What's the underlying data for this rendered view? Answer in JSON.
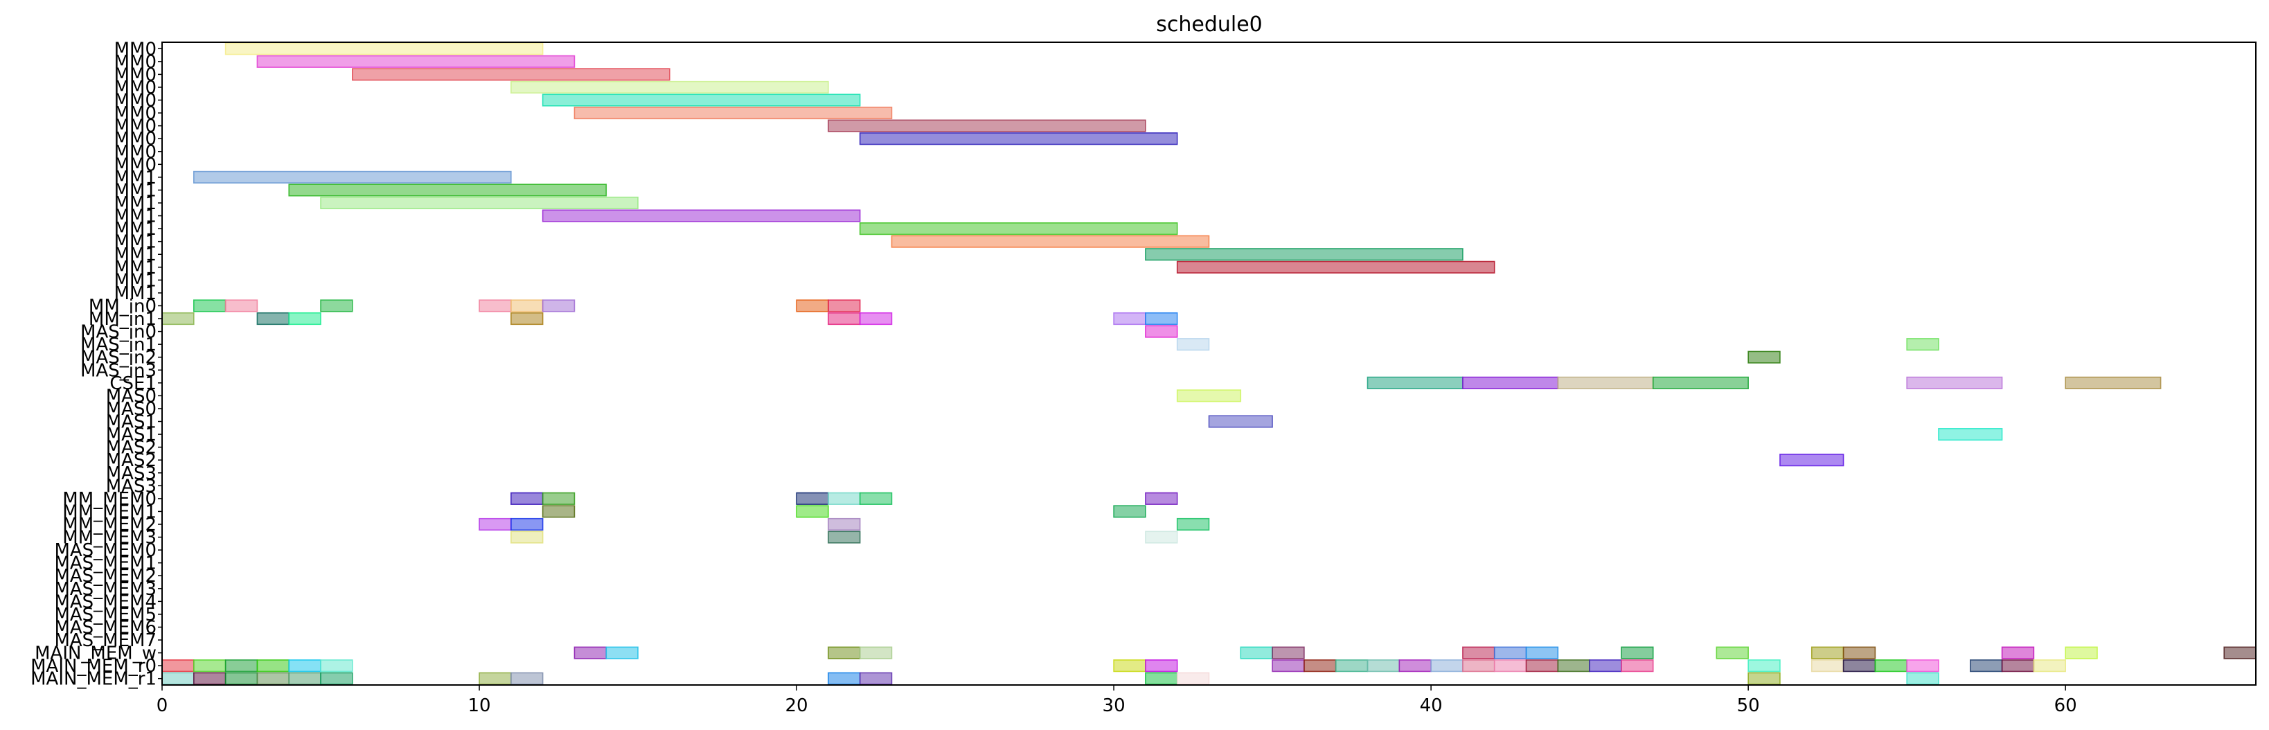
{
  "chart_data": {
    "type": "gantt",
    "title": "schedule0",
    "xlabel": "",
    "ylabel": "",
    "xlim": [
      0,
      66
    ],
    "x_ticks": [
      0,
      10,
      20,
      30,
      40,
      50,
      60
    ],
    "grid": false,
    "legend": "none",
    "rows": [
      "MM0",
      "MM0",
      "MM0",
      "MM0",
      "MM0",
      "MM0",
      "MM0",
      "MM0",
      "MM0",
      "MM0",
      "MM1",
      "MM1",
      "MM1",
      "MM1",
      "MM1",
      "MM1",
      "MM1",
      "MM1",
      "MM1",
      "MM1",
      "MM_in0",
      "MM_in1",
      "MAS_in0",
      "MAS_in1",
      "MAS_in2",
      "MAS_in3",
      "CSE1",
      "MAS0",
      "MAS0",
      "MAS1",
      "MAS1",
      "MAS2",
      "MAS2",
      "MAS3",
      "MAS3",
      "MM_MEM0",
      "MM_MEM1",
      "MM_MEM2",
      "MM_MEM3",
      "MAS_MEM0",
      "MAS_MEM1",
      "MAS_MEM2",
      "MAS_MEM3",
      "MAS_MEM4",
      "MAS_MEM5",
      "MAS_MEM6",
      "MAS_MEM7",
      "MAIN_MEM_w",
      "MAIN_MEM_r0",
      "MAIN_MEM_r1"
    ],
    "bars": [
      {
        "row": 0,
        "start": 2,
        "end": 12,
        "color": "#f4ec8a"
      },
      {
        "row": 1,
        "start": 3,
        "end": 13,
        "color": "#e23ed2"
      },
      {
        "row": 2,
        "start": 6,
        "end": 16,
        "color": "#e0444f"
      },
      {
        "row": 3,
        "start": 11,
        "end": 21,
        "color": "#c8f08a"
      },
      {
        "row": 4,
        "start": 12,
        "end": 22,
        "color": "#14e0b0"
      },
      {
        "row": 5,
        "start": 13,
        "end": 23,
        "color": "#f07a5a"
      },
      {
        "row": 6,
        "start": 21,
        "end": 31,
        "color": "#a23550"
      },
      {
        "row": 7,
        "start": 22,
        "end": 32,
        "color": "#2a1bb8"
      },
      {
        "row": 10,
        "start": 1,
        "end": 11,
        "color": "#6495d2"
      },
      {
        "row": 11,
        "start": 4,
        "end": 14,
        "color": "#28b41c"
      },
      {
        "row": 12,
        "start": 5,
        "end": 15,
        "color": "#96e880"
      },
      {
        "row": 13,
        "start": 12,
        "end": 22,
        "color": "#9a26d4"
      },
      {
        "row": 14,
        "start": 22,
        "end": 32,
        "color": "#3cc21e"
      },
      {
        "row": 15,
        "start": 23,
        "end": 33,
        "color": "#f47a40"
      },
      {
        "row": 16,
        "start": 31,
        "end": 41,
        "color": "#0e9a5c"
      },
      {
        "row": 17,
        "start": 32,
        "end": 42,
        "color": "#b40e24"
      },
      {
        "row": 20,
        "start": 1,
        "end": 2,
        "color": "#10c448"
      },
      {
        "row": 20,
        "start": 2,
        "end": 3,
        "color": "#f07c9a"
      },
      {
        "row": 20,
        "start": 5,
        "end": 6,
        "color": "#1cb43c"
      },
      {
        "row": 20,
        "start": 10,
        "end": 11,
        "color": "#f07c9a"
      },
      {
        "row": 20,
        "start": 11,
        "end": 12,
        "color": "#f0bc6c"
      },
      {
        "row": 20,
        "start": 12,
        "end": 13,
        "color": "#a06cd4"
      },
      {
        "row": 20,
        "start": 20,
        "end": 21,
        "color": "#e4580c"
      },
      {
        "row": 20,
        "start": 21,
        "end": 22,
        "color": "#e0204c"
      },
      {
        "row": 21,
        "start": 0,
        "end": 1,
        "color": "#88b44c"
      },
      {
        "row": 21,
        "start": 3,
        "end": 4,
        "color": "#0c6a5c"
      },
      {
        "row": 21,
        "start": 4,
        "end": 5,
        "color": "#14ec8c"
      },
      {
        "row": 21,
        "start": 11,
        "end": 12,
        "color": "#a87c10"
      },
      {
        "row": 21,
        "start": 21,
        "end": 22,
        "color": "#e4207c"
      },
      {
        "row": 21,
        "start": 22,
        "end": 23,
        "color": "#d020e4"
      },
      {
        "row": 21,
        "start": 30,
        "end": 31,
        "color": "#a86cf0"
      },
      {
        "row": 21,
        "start": 31,
        "end": 32,
        "color": "#1c7cf0"
      },
      {
        "row": 22,
        "start": 31,
        "end": 32,
        "color": "#e020d0"
      },
      {
        "row": 23,
        "start": 32,
        "end": 33,
        "color": "#b4d4ec"
      },
      {
        "row": 23,
        "start": 55,
        "end": 56,
        "color": "#6ce05c"
      },
      {
        "row": 24,
        "start": 50,
        "end": 51,
        "color": "#2c7c0c"
      },
      {
        "row": 26,
        "start": 38,
        "end": 41,
        "color": "#18a07c"
      },
      {
        "row": 26,
        "start": 41,
        "end": 44,
        "color": "#8010d4"
      },
      {
        "row": 26,
        "start": 44,
        "end": 47,
        "color": "#bcac80"
      },
      {
        "row": 26,
        "start": 47,
        "end": 50,
        "color": "#14a430"
      },
      {
        "row": 26,
        "start": 55,
        "end": 58,
        "color": "#b870d8"
      },
      {
        "row": 26,
        "start": 60,
        "end": 63,
        "color": "#a88c40"
      },
      {
        "row": 27,
        "start": 32,
        "end": 34,
        "color": "#ccf45c"
      },
      {
        "row": 29,
        "start": 33,
        "end": 35,
        "color": "#4c4cc0"
      },
      {
        "row": 30,
        "start": 56,
        "end": 58,
        "color": "#20e8c8"
      },
      {
        "row": 32,
        "start": 51,
        "end": 53,
        "color": "#5c14e4"
      },
      {
        "row": 35,
        "start": 11,
        "end": 12,
        "color": "#3410b8"
      },
      {
        "row": 35,
        "start": 12,
        "end": 13,
        "color": "#349c1c"
      },
      {
        "row": 35,
        "start": 20,
        "end": 21,
        "color": "#0c246c"
      },
      {
        "row": 35,
        "start": 21,
        "end": 22,
        "color": "#70d8c8"
      },
      {
        "row": 35,
        "start": 22,
        "end": 23,
        "color": "#14c058"
      },
      {
        "row": 35,
        "start": 31,
        "end": 32,
        "color": "#7018c0"
      },
      {
        "row": 36,
        "start": 12,
        "end": 13,
        "color": "#546c10"
      },
      {
        "row": 36,
        "start": 20,
        "end": 21,
        "color": "#40d814"
      },
      {
        "row": 36,
        "start": 30,
        "end": 31,
        "color": "#0ca44c"
      },
      {
        "row": 37,
        "start": 10,
        "end": 11,
        "color": "#b434e8"
      },
      {
        "row": 37,
        "start": 11,
        "end": 12,
        "color": "#1430e8"
      },
      {
        "row": 37,
        "start": 21,
        "end": 22,
        "color": "#a07cbc"
      },
      {
        "row": 37,
        "start": 32,
        "end": 33,
        "color": "#14c060"
      },
      {
        "row": 38,
        "start": 11,
        "end": 12,
        "color": "#e0e07c"
      },
      {
        "row": 38,
        "start": 21,
        "end": 22,
        "color": "#2c6c54"
      },
      {
        "row": 38,
        "start": 31,
        "end": 32,
        "color": "#cce8e0"
      },
      {
        "row": 47,
        "start": 13,
        "end": 14,
        "color": "#8c1cb0"
      },
      {
        "row": 47,
        "start": 14,
        "end": 15,
        "color": "#1cc0e8"
      },
      {
        "row": 47,
        "start": 21,
        "end": 22,
        "color": "#6c8c14"
      },
      {
        "row": 47,
        "start": 22,
        "end": 23,
        "color": "#a8cc8c"
      },
      {
        "row": 47,
        "start": 34,
        "end": 35,
        "color": "#24d8bc"
      },
      {
        "row": 47,
        "start": 35,
        "end": 36,
        "color": "#7c2c60"
      },
      {
        "row": 47,
        "start": 41,
        "end": 42,
        "color": "#b81c4c"
      },
      {
        "row": 47,
        "start": 42,
        "end": 43,
        "color": "#3c70d8"
      },
      {
        "row": 47,
        "start": 43,
        "end": 44,
        "color": "#1c8ce8"
      },
      {
        "row": 47,
        "start": 46,
        "end": 47,
        "color": "#0c9c3c"
      },
      {
        "row": 47,
        "start": 49,
        "end": 50,
        "color": "#5cd430"
      },
      {
        "row": 47,
        "start": 52,
        "end": 53,
        "color": "#9c9c14"
      },
      {
        "row": 47,
        "start": 53,
        "end": 54,
        "color": "#7c4c0c"
      },
      {
        "row": 47,
        "start": 58,
        "end": 59,
        "color": "#c00cb8"
      },
      {
        "row": 47,
        "start": 60,
        "end": 61,
        "color": "#c0f440"
      },
      {
        "row": 47,
        "start": 65,
        "end": 66,
        "color": "#4c1c1c"
      },
      {
        "row": 48,
        "start": 0,
        "end": 1,
        "color": "#e4303c"
      },
      {
        "row": 48,
        "start": 1,
        "end": 2,
        "color": "#50d424"
      },
      {
        "row": 48,
        "start": 2,
        "end": 3,
        "color": "#149c30"
      },
      {
        "row": 48,
        "start": 3,
        "end": 4,
        "color": "#30c80c"
      },
      {
        "row": 48,
        "start": 4,
        "end": 5,
        "color": "#0cc4ec"
      },
      {
        "row": 48,
        "start": 5,
        "end": 6,
        "color": "#5ce8cc"
      },
      {
        "row": 48,
        "start": 30,
        "end": 31,
        "color": "#c8d80c"
      },
      {
        "row": 48,
        "start": 31,
        "end": 32,
        "color": "#c00ce0"
      },
      {
        "row": 48,
        "start": 35,
        "end": 36,
        "color": "#9024b0"
      },
      {
        "row": 48,
        "start": 36,
        "end": 37,
        "color": "#8c1c0c"
      },
      {
        "row": 48,
        "start": 37,
        "end": 38,
        "color": "#3cb08c"
      },
      {
        "row": 48,
        "start": 38,
        "end": 39,
        "color": "#6cbcac"
      },
      {
        "row": 48,
        "start": 39,
        "end": 40,
        "color": "#a01cb8"
      },
      {
        "row": 48,
        "start": 40,
        "end": 41,
        "color": "#88acd8"
      },
      {
        "row": 48,
        "start": 41,
        "end": 42,
        "color": "#dc6c8c"
      },
      {
        "row": 48,
        "start": 42,
        "end": 43,
        "color": "#ec7cac"
      },
      {
        "row": 48,
        "start": 43,
        "end": 44,
        "color": "#a01c3c"
      },
      {
        "row": 48,
        "start": 44,
        "end": 45,
        "color": "#3c6c1c"
      },
      {
        "row": 48,
        "start": 45,
        "end": 46,
        "color": "#3c1cbc"
      },
      {
        "row": 48,
        "start": 46,
        "end": 47,
        "color": "#e83c8c"
      },
      {
        "row": 48,
        "start": 50,
        "end": 51,
        "color": "#3cf0c0"
      },
      {
        "row": 48,
        "start": 52,
        "end": 53,
        "color": "#e8d8a0"
      },
      {
        "row": 48,
        "start": 53,
        "end": 54,
        "color": "#1c0c3c"
      },
      {
        "row": 48,
        "start": 54,
        "end": 55,
        "color": "#1cc81c"
      },
      {
        "row": 48,
        "start": 55,
        "end": 56,
        "color": "#f04cd8"
      },
      {
        "row": 48,
        "start": 57,
        "end": 58,
        "color": "#1c3c6c"
      },
      {
        "row": 48,
        "start": 58,
        "end": 59,
        "color": "#6c0c3c"
      },
      {
        "row": 48,
        "start": 59,
        "end": 60,
        "color": "#e8e880"
      },
      {
        "row": 49,
        "start": 0,
        "end": 1,
        "color": "#6cccc0"
      },
      {
        "row": 49,
        "start": 1,
        "end": 2,
        "color": "#5c0c3c"
      },
      {
        "row": 49,
        "start": 2,
        "end": 3,
        "color": "#0c8c2c"
      },
      {
        "row": 49,
        "start": 3,
        "end": 4,
        "color": "#5c8c4c"
      },
      {
        "row": 49,
        "start": 4,
        "end": 5,
        "color": "#4c9c6c"
      },
      {
        "row": 49,
        "start": 5,
        "end": 6,
        "color": "#0c9c5c"
      },
      {
        "row": 49,
        "start": 10,
        "end": 11,
        "color": "#8cac3c"
      },
      {
        "row": 49,
        "start": 11,
        "end": 12,
        "color": "#7c8cac"
      },
      {
        "row": 49,
        "start": 21,
        "end": 22,
        "color": "#0c7ce8"
      },
      {
        "row": 49,
        "start": 22,
        "end": 23,
        "color": "#5c2cac"
      },
      {
        "row": 49,
        "start": 31,
        "end": 32,
        "color": "#0cc03c"
      },
      {
        "row": 49,
        "start": 32,
        "end": 33,
        "color": "#f4d8d8"
      },
      {
        "row": 49,
        "start": 50,
        "end": 51,
        "color": "#8cac1c"
      },
      {
        "row": 49,
        "start": 55,
        "end": 56,
        "color": "#3ce0c8"
      }
    ]
  }
}
